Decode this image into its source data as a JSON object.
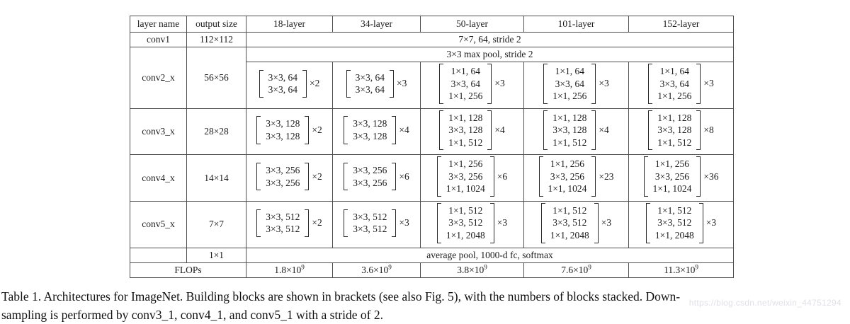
{
  "table": {
    "header": [
      "layer name",
      "output size",
      "18-layer",
      "34-layer",
      "50-layer",
      "101-layer",
      "152-layer"
    ],
    "rows": [
      {
        "cells": [
          {
            "t": "conv1",
            "name": "layer-name-cell"
          },
          {
            "t": "112×112",
            "name": "output-size-cell"
          },
          {
            "t": "7×7, 64, stride 2",
            "colspan": 5,
            "name": "conv1-spec-cell"
          }
        ]
      },
      {
        "cells": [
          {
            "t": "conv2_x",
            "rowspan": 2,
            "name": "layer-name-cell"
          },
          {
            "t": "56×56",
            "rowspan": 2,
            "name": "output-size-cell"
          },
          {
            "t": "3×3 max pool, stride 2",
            "colspan": 5,
            "name": "maxpool-spec-cell"
          }
        ]
      },
      {
        "cells": [
          {
            "block": [
              "3×3, 64",
              "3×3, 64"
            ],
            "mult": "×2",
            "name": "block-cell"
          },
          {
            "block": [
              "3×3, 64",
              "3×3, 64"
            ],
            "mult": "×3",
            "name": "block-cell"
          },
          {
            "block": [
              "1×1, 64",
              "3×3, 64",
              "1×1, 256"
            ],
            "mult": "×3",
            "name": "block-cell"
          },
          {
            "block": [
              "1×1, 64",
              "3×3, 64",
              "1×1, 256"
            ],
            "mult": "×3",
            "name": "block-cell"
          },
          {
            "block": [
              "1×1, 64",
              "3×3, 64",
              "1×1, 256"
            ],
            "mult": "×3",
            "name": "block-cell"
          }
        ]
      },
      {
        "cells": [
          {
            "t": "conv3_x",
            "name": "layer-name-cell"
          },
          {
            "t": "28×28",
            "name": "output-size-cell"
          },
          {
            "block": [
              "3×3, 128",
              "3×3, 128"
            ],
            "mult": "×2",
            "name": "block-cell"
          },
          {
            "block": [
              "3×3, 128",
              "3×3, 128"
            ],
            "mult": "×4",
            "name": "block-cell"
          },
          {
            "block": [
              "1×1, 128",
              "3×3, 128",
              "1×1, 512"
            ],
            "mult": "×4",
            "name": "block-cell"
          },
          {
            "block": [
              "1×1, 128",
              "3×3, 128",
              "1×1, 512"
            ],
            "mult": "×4",
            "name": "block-cell"
          },
          {
            "block": [
              "1×1, 128",
              "3×3, 128",
              "1×1, 512"
            ],
            "mult": "×8",
            "name": "block-cell"
          }
        ]
      },
      {
        "cells": [
          {
            "t": "conv4_x",
            "name": "layer-name-cell"
          },
          {
            "t": "14×14",
            "name": "output-size-cell"
          },
          {
            "block": [
              "3×3, 256",
              "3×3, 256"
            ],
            "mult": "×2",
            "name": "block-cell"
          },
          {
            "block": [
              "3×3, 256",
              "3×3, 256"
            ],
            "mult": "×6",
            "name": "block-cell"
          },
          {
            "block": [
              "1×1, 256",
              "3×3, 256",
              "1×1, 1024"
            ],
            "mult": "×6",
            "name": "block-cell"
          },
          {
            "block": [
              "1×1, 256",
              "3×3, 256",
              "1×1, 1024"
            ],
            "mult": "×23",
            "name": "block-cell"
          },
          {
            "block": [
              "1×1, 256",
              "3×3, 256",
              "1×1, 1024"
            ],
            "mult": "×36",
            "name": "block-cell"
          }
        ]
      },
      {
        "cells": [
          {
            "t": "conv5_x",
            "name": "layer-name-cell"
          },
          {
            "t": "7×7",
            "name": "output-size-cell"
          },
          {
            "block": [
              "3×3, 512",
              "3×3, 512"
            ],
            "mult": "×2",
            "name": "block-cell"
          },
          {
            "block": [
              "3×3, 512",
              "3×3, 512"
            ],
            "mult": "×3",
            "name": "block-cell"
          },
          {
            "block": [
              "1×1, 512",
              "3×3, 512",
              "1×1, 2048"
            ],
            "mult": "×3",
            "name": "block-cell"
          },
          {
            "block": [
              "1×1, 512",
              "3×3, 512",
              "1×1, 2048"
            ],
            "mult": "×3",
            "name": "block-cell"
          },
          {
            "block": [
              "1×1, 512",
              "3×3, 512",
              "1×1, 2048"
            ],
            "mult": "×3",
            "name": "block-cell"
          }
        ]
      },
      {
        "cells": [
          {
            "t": "",
            "name": "layer-name-cell"
          },
          {
            "t": "1×1",
            "name": "output-size-cell"
          },
          {
            "t": "average pool, 1000-d fc, softmax",
            "colspan": 5,
            "name": "avgpool-spec-cell"
          }
        ]
      },
      {
        "cells": [
          {
            "t": "FLOPs",
            "colspan": 2,
            "name": "flops-label-cell"
          },
          {
            "t": "1.8×10",
            "exp": "9",
            "name": "flops-value-cell"
          },
          {
            "t": "3.6×10",
            "exp": "9",
            "name": "flops-value-cell"
          },
          {
            "t": "3.8×10",
            "exp": "9",
            "name": "flops-value-cell"
          },
          {
            "t": "7.6×10",
            "exp": "9",
            "name": "flops-value-cell"
          },
          {
            "t": "11.3×10",
            "exp": "9",
            "name": "flops-value-cell"
          }
        ]
      }
    ]
  },
  "caption": {
    "line1": "Table 1. Architectures for ImageNet. Building blocks are shown in brackets (see also Fig. 5), with the numbers of blocks stacked. Down-",
    "line2": "sampling is performed by conv3_1, conv4_1, and conv5_1 with a stride of 2."
  },
  "watermark": "https://blog.csdn.net/weixin_44751294"
}
